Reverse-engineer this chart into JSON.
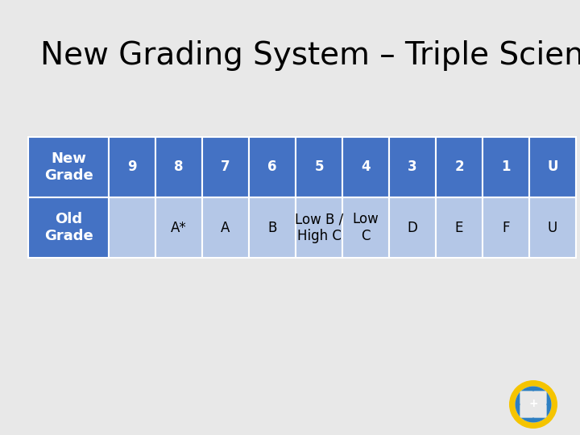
{
  "title": "New Grading System – Triple Science",
  "title_fontsize": 28,
  "background_color": "#e8e8e8",
  "table": {
    "row_labels": [
      "New\nGrade",
      "Old\nGrade"
    ],
    "col_data": [
      {
        "new": "9",
        "old": ""
      },
      {
        "new": "8",
        "old": "A*"
      },
      {
        "new": "7",
        "old": "A"
      },
      {
        "new": "6",
        "old": "B"
      },
      {
        "new": "5",
        "old": "Low B /\nHigh C"
      },
      {
        "new": "4",
        "old": "Low\nC"
      },
      {
        "new": "3",
        "old": "D"
      },
      {
        "new": "2",
        "old": "E"
      },
      {
        "new": "1",
        "old": "F"
      },
      {
        "new": "U",
        "old": "U"
      }
    ],
    "header_bg": "#4472c4",
    "header_text": "#ffffff",
    "data_bg": "#b4c7e7",
    "data_text": "#000000",
    "label_bg": "#4472c4",
    "label_text": "#ffffff"
  }
}
